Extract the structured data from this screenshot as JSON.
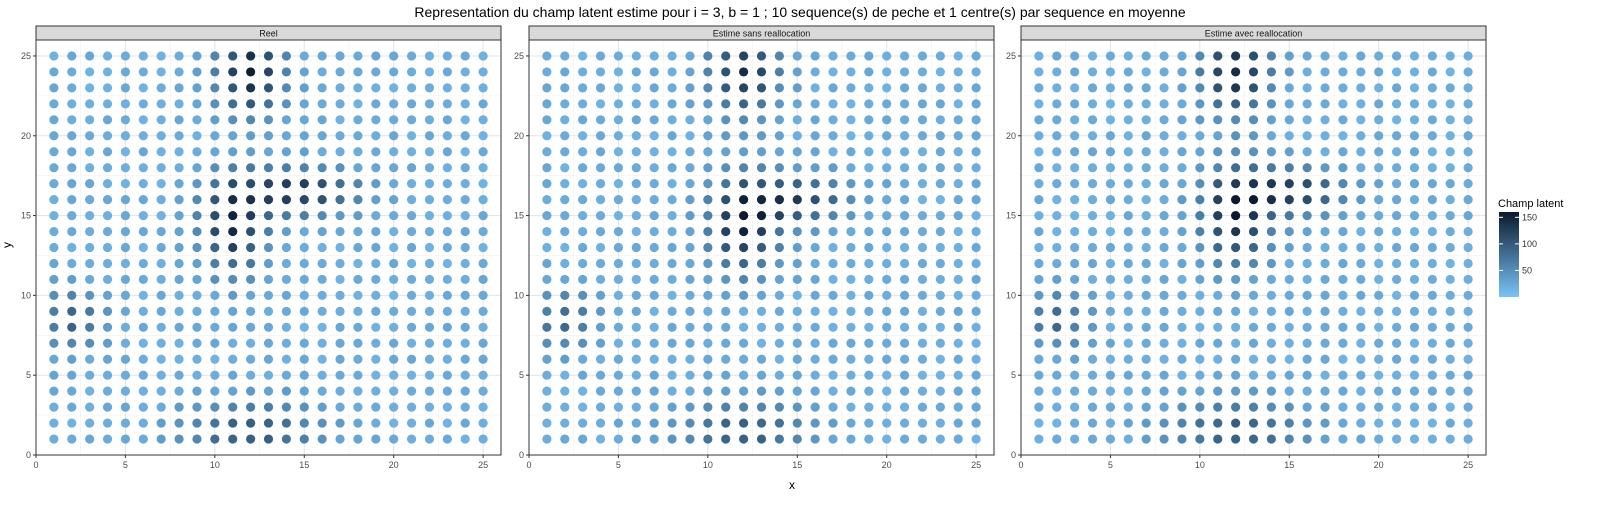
{
  "chart_data": {
    "type": "scatter",
    "title": "Representation du champ latent estime pour i = 3, b = 1 ; 10 sequence(s) de peche et 1 centre(s) par sequence en moyenne",
    "xlabel": "x",
    "ylabel": "y",
    "xlim": [
      0,
      26
    ],
    "ylim": [
      0,
      26
    ],
    "xticks": [
      0,
      5,
      10,
      15,
      20,
      25
    ],
    "yticks": [
      0,
      5,
      10,
      15,
      20,
      25
    ],
    "grid": true,
    "legend": {
      "title": "Champ latent",
      "position": "right",
      "ticks": [
        150,
        100,
        50
      ],
      "low_color": "#7ac3f7",
      "high_color": "#0b1a2e",
      "range": [
        0,
        160
      ]
    },
    "panels": [
      {
        "strip_label": "Reel",
        "grid_x": [
          1,
          25
        ],
        "grid_y": [
          1,
          25
        ],
        "field": {
          "background": 15,
          "noise": 10,
          "hotspots": [
            {
              "x": 12,
              "y": 24,
              "sx": 1.2,
              "sy": 1.8,
              "amp": 140
            },
            {
              "x": 11,
              "y": 14.5,
              "sx": 1.2,
              "sy": 2.0,
              "amp": 130
            },
            {
              "x": 14.5,
              "y": 16.5,
              "sx": 2.2,
              "sy": 1.0,
              "amp": 115
            },
            {
              "x": 2,
              "y": 8.5,
              "sx": 1.2,
              "sy": 1.2,
              "amp": 70
            },
            {
              "x": 12,
              "y": 1.5,
              "sx": 2.5,
              "sy": 1.3,
              "amp": 80
            }
          ]
        }
      },
      {
        "strip_label": "Estime sans reallocation",
        "grid_x": [
          1,
          25
        ],
        "grid_y": [
          1,
          25
        ],
        "field": {
          "background": 15,
          "noise": 10,
          "hotspots": [
            {
              "x": 12,
              "y": 24,
              "sx": 1.3,
              "sy": 1.8,
              "amp": 120
            },
            {
              "x": 12,
              "y": 14.5,
              "sx": 1.3,
              "sy": 2.0,
              "amp": 135
            },
            {
              "x": 15,
              "y": 16,
              "sx": 2.0,
              "sy": 1.0,
              "amp": 100
            },
            {
              "x": 2,
              "y": 8.5,
              "sx": 1.2,
              "sy": 1.2,
              "amp": 65
            },
            {
              "x": 12,
              "y": 1.5,
              "sx": 2.5,
              "sy": 1.3,
              "amp": 75
            }
          ]
        }
      },
      {
        "strip_label": "Estime avec reallocation",
        "grid_x": [
          1,
          25
        ],
        "grid_y": [
          1,
          25
        ],
        "field": {
          "background": 15,
          "noise": 10,
          "hotspots": [
            {
              "x": 12,
              "y": 24,
              "sx": 1.3,
              "sy": 1.8,
              "amp": 130
            },
            {
              "x": 12,
              "y": 15,
              "sx": 1.3,
              "sy": 2.0,
              "amp": 130
            },
            {
              "x": 15,
              "y": 16.5,
              "sx": 2.0,
              "sy": 1.0,
              "amp": 110
            },
            {
              "x": 2,
              "y": 8.5,
              "sx": 1.2,
              "sy": 1.2,
              "amp": 65
            },
            {
              "x": 12,
              "y": 1.5,
              "sx": 2.5,
              "sy": 1.3,
              "amp": 75
            }
          ]
        }
      }
    ]
  }
}
